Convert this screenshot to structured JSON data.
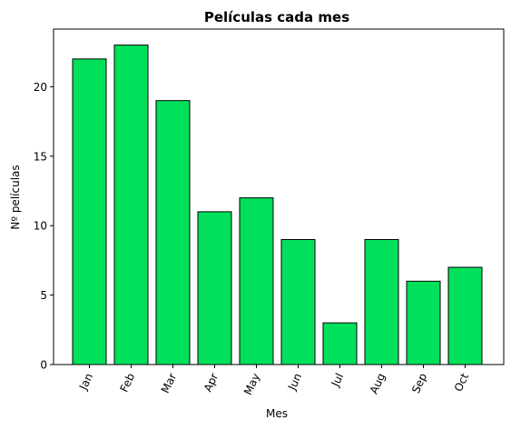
{
  "chart_data": {
    "type": "bar",
    "title": "Películas cada mes",
    "xlabel": "Mes",
    "ylabel": "Nº películas",
    "categories": [
      "Jan",
      "Feb",
      "Mar",
      "Apr",
      "May",
      "Jun",
      "Jul",
      "Aug",
      "Sep",
      "Oct"
    ],
    "values": [
      22,
      23,
      19,
      11,
      12,
      9,
      3,
      9,
      6,
      7
    ],
    "ylim": [
      0,
      24.15
    ],
    "yticks": [
      0,
      5,
      10,
      15,
      20
    ],
    "grid": false,
    "bar_color": "#00e05a",
    "edge_color": "#000000",
    "x_tick_rotation_deg": -65
  }
}
